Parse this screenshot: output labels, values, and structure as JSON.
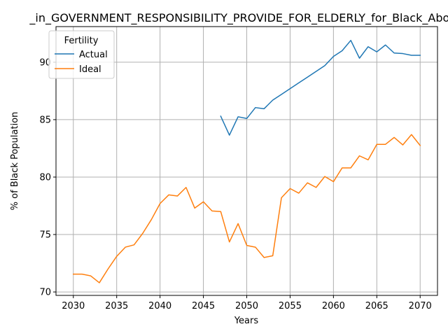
{
  "chart_data": {
    "type": "line",
    "title": "_in_GOVERNMENT_RESPONSIBILITY_PROVIDE_FOR_ELDERLY_for_Black_Above",
    "xlabel": "Years",
    "ylabel": "% of Black Population",
    "xlim": [
      2028,
      2072
    ],
    "ylim": [
      69.7,
      93.1
    ],
    "xticks": [
      2030,
      2035,
      2040,
      2045,
      2050,
      2055,
      2060,
      2065,
      2070
    ],
    "yticks": [
      70,
      75,
      80,
      85,
      90
    ],
    "grid": true,
    "legend": {
      "title": "Fertility",
      "position": "top-left"
    },
    "series": [
      {
        "name": "Actual",
        "color": "#1f77b4",
        "x": [
          2047,
          2048,
          2049,
          2050,
          2051,
          2052,
          2053,
          2054,
          2055,
          2056,
          2057,
          2058,
          2059,
          2060,
          2061,
          2062,
          2063,
          2064,
          2065,
          2066,
          2067,
          2068,
          2069,
          2070
        ],
        "values": [
          85.3,
          83.65,
          85.25,
          85.1,
          86.05,
          85.95,
          86.7,
          87.2,
          87.7,
          88.2,
          88.7,
          89.2,
          89.7,
          90.5,
          91.0,
          91.9,
          90.35,
          91.35,
          90.9,
          91.5,
          90.8,
          90.75,
          90.6,
          90.6
        ]
      },
      {
        "name": "Ideal",
        "color": "#ff7f0e",
        "x": [
          2030,
          2031,
          2032,
          2033,
          2034,
          2035,
          2036,
          2037,
          2038,
          2039,
          2040,
          2041,
          2042,
          2043,
          2044,
          2045,
          2046,
          2047,
          2048,
          2049,
          2050,
          2051,
          2052,
          2053,
          2054,
          2055,
          2056,
          2057,
          2058,
          2059,
          2060,
          2061,
          2062,
          2063,
          2064,
          2065,
          2066,
          2067,
          2068,
          2069,
          2070
        ],
        "values": [
          71.55,
          71.55,
          71.4,
          70.8,
          72.0,
          73.1,
          73.9,
          74.1,
          75.1,
          76.3,
          77.7,
          78.45,
          78.35,
          79.1,
          77.3,
          77.85,
          77.05,
          77.0,
          74.35,
          75.95,
          74.05,
          73.9,
          73.0,
          73.15,
          78.2,
          79.0,
          78.6,
          79.5,
          79.1,
          80.05,
          79.6,
          80.8,
          80.8,
          81.85,
          81.5,
          82.85,
          82.85,
          83.45,
          82.8,
          83.7,
          82.75
        ]
      }
    ]
  }
}
